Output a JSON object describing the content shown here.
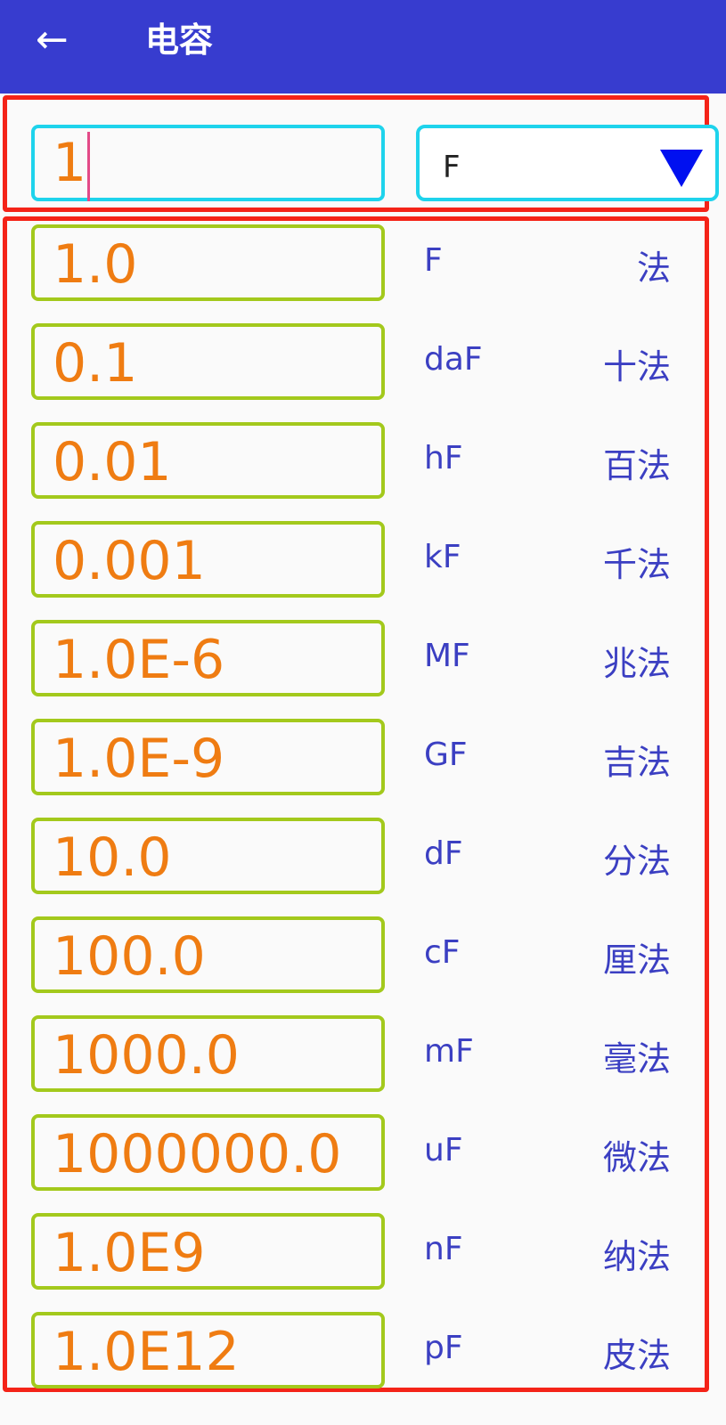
{
  "header": {
    "title": "电容",
    "back_icon": "arrow-left-icon"
  },
  "input": {
    "value": "1"
  },
  "unit_select": {
    "selected": "F"
  },
  "rows": [
    {
      "value": "1.0",
      "unit": "F",
      "name": "法"
    },
    {
      "value": "0.1",
      "unit": "daF",
      "name": "十法"
    },
    {
      "value": "0.01",
      "unit": "hF",
      "name": "百法"
    },
    {
      "value": "0.001",
      "unit": "kF",
      "name": "千法"
    },
    {
      "value": "1.0E-6",
      "unit": "MF",
      "name": "兆法"
    },
    {
      "value": "1.0E-9",
      "unit": "GF",
      "name": "吉法"
    },
    {
      "value": "10.0",
      "unit": "dF",
      "name": "分法"
    },
    {
      "value": "100.0",
      "unit": "cF",
      "name": "厘法"
    },
    {
      "value": "1000.0",
      "unit": "mF",
      "name": "毫法"
    },
    {
      "value": "1000000.0",
      "unit": "uF",
      "name": "微法"
    },
    {
      "value": "1.0E9",
      "unit": "nF",
      "name": "纳法"
    },
    {
      "value": "1.0E12",
      "unit": "pF",
      "name": "皮法"
    }
  ],
  "colors": {
    "appbar": "#373ccf",
    "value": "#ef7c12",
    "label": "#3b3fc2",
    "highlight": "#f42318"
  }
}
